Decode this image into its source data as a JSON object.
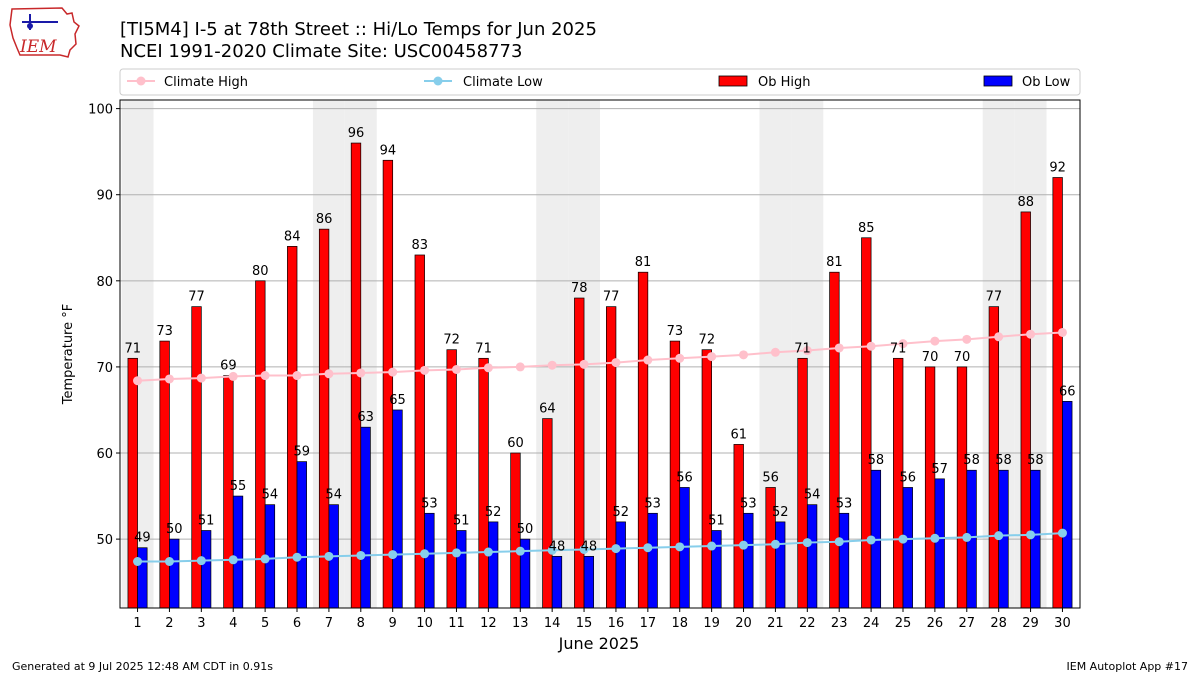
{
  "logo": {
    "text": "IEM"
  },
  "title_line1": "[TI5M4] I-5 at 78th Street  :: Hi/Lo Temps for Jun 2025",
  "title_line2": "NCEI 1991-2020 Climate Site: USC00458773",
  "footer_left": "Generated at 9 Jul 2025 12:48 AM CDT in 0.91s",
  "footer_right": "IEM Autoplot App #17",
  "colors": {
    "ob_high": "#ff0000",
    "ob_low": "#0000ff",
    "climate_high": "#ffc0cb",
    "climate_low": "#87ceeb",
    "weekend_shade": "#eeeeee",
    "grid": "#b0b0b0"
  },
  "chart_data": {
    "type": "bar",
    "xlabel": "June 2025",
    "ylabel": "Temperature °F",
    "ylim": [
      42,
      101
    ],
    "yticks": [
      50,
      60,
      70,
      80,
      90,
      100
    ],
    "grid": true,
    "legend_position": "top",
    "categories": [
      "1",
      "2",
      "3",
      "4",
      "5",
      "6",
      "7",
      "8",
      "9",
      "10",
      "11",
      "12",
      "13",
      "14",
      "15",
      "16",
      "17",
      "18",
      "19",
      "20",
      "21",
      "22",
      "23",
      "24",
      "25",
      "26",
      "27",
      "28",
      "29",
      "30"
    ],
    "shaded_days": [
      1,
      7,
      8,
      14,
      15,
      21,
      22,
      28,
      29
    ],
    "series": [
      {
        "name": "Climate High",
        "kind": "line",
        "color": "#ffc0cb",
        "values": [
          68.4,
          68.6,
          68.7,
          68.9,
          69.0,
          69.0,
          69.2,
          69.3,
          69.4,
          69.6,
          69.7,
          69.9,
          70.0,
          70.2,
          70.3,
          70.5,
          70.8,
          71.0,
          71.2,
          71.4,
          71.7,
          71.9,
          72.2,
          72.4,
          72.7,
          73.0,
          73.2,
          73.5,
          73.8,
          74.0
        ]
      },
      {
        "name": "Climate Low",
        "kind": "line",
        "color": "#87ceeb",
        "values": [
          47.4,
          47.4,
          47.5,
          47.6,
          47.7,
          47.9,
          48.0,
          48.1,
          48.2,
          48.3,
          48.4,
          48.5,
          48.6,
          48.7,
          48.8,
          48.9,
          49.0,
          49.1,
          49.2,
          49.3,
          49.4,
          49.6,
          49.7,
          49.9,
          50.0,
          50.1,
          50.2,
          50.4,
          50.5,
          50.7
        ]
      },
      {
        "name": "Ob High",
        "kind": "bar",
        "color": "#ff0000",
        "values": [
          71,
          73,
          77,
          69,
          80,
          84,
          86,
          96,
          94,
          83,
          72,
          71,
          60,
          64,
          78,
          77,
          81,
          73,
          72,
          61,
          56,
          71,
          81,
          85,
          71,
          70,
          70,
          77,
          88,
          92
        ]
      },
      {
        "name": "Ob Low",
        "kind": "bar",
        "color": "#0000ff",
        "values": [
          49,
          50,
          51,
          55,
          54,
          59,
          54,
          63,
          65,
          53,
          51,
          52,
          50,
          48,
          48,
          52,
          53,
          56,
          51,
          53,
          52,
          54,
          53,
          58,
          56,
          57,
          58,
          58,
          58,
          66
        ]
      }
    ]
  }
}
